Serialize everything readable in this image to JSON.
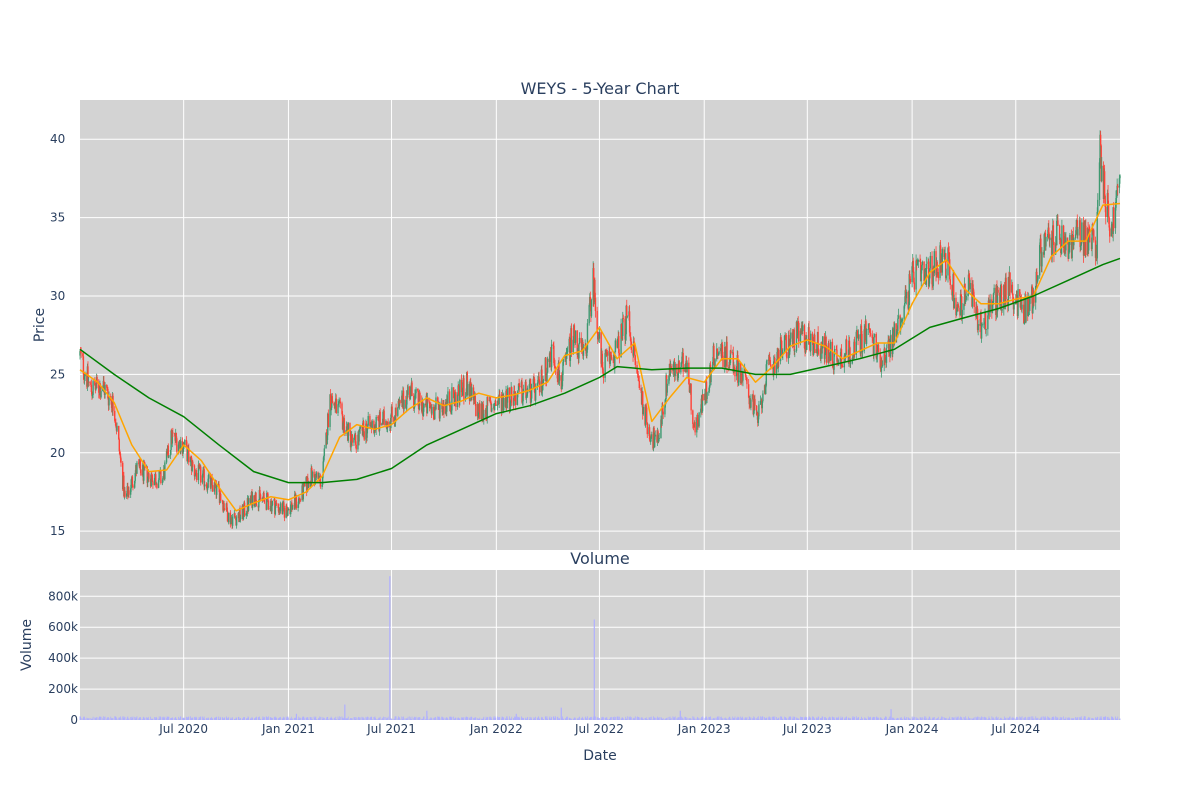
{
  "colors": {
    "plot_bg": "#d3d3d3",
    "grid": "#ffffff",
    "up": "#3d9970",
    "down": "#ff4136",
    "ma_short": "#ffa500",
    "ma_long": "#008000",
    "volume": "#b0b0ff",
    "text": "#2a3f5f"
  },
  "chart_data": [
    {
      "type": "candlestick",
      "title": "WEYS - 5-Year Chart",
      "ylabel": "Price",
      "ylim": [
        13.8,
        42.5
      ],
      "xlim": [
        "2020-01-01",
        "2024-12-31"
      ],
      "yticks": [
        15,
        20,
        25,
        30,
        35,
        40
      ],
      "grid": true,
      "price_path_points": [
        [
          "2020-01-01",
          26.2
        ],
        [
          "2020-01-20",
          24.0
        ],
        [
          "2020-02-10",
          24.3
        ],
        [
          "2020-03-01",
          23.0
        ],
        [
          "2020-03-20",
          17.0
        ],
        [
          "2020-04-10",
          19.0
        ],
        [
          "2020-05-01",
          18.5
        ],
        [
          "2020-05-25",
          18.3
        ],
        [
          "2020-06-10",
          21.0
        ],
        [
          "2020-07-01",
          20.5
        ],
        [
          "2020-07-20",
          18.8
        ],
        [
          "2020-08-10",
          18.2
        ],
        [
          "2020-09-01",
          17.5
        ],
        [
          "2020-09-20",
          15.8
        ],
        [
          "2020-10-10",
          16.0
        ],
        [
          "2020-11-01",
          17.2
        ],
        [
          "2020-12-01",
          16.8
        ],
        [
          "2020-12-25",
          16.3
        ],
        [
          "2021-01-20",
          17.0
        ],
        [
          "2021-02-10",
          18.5
        ],
        [
          "2021-03-01",
          18.2
        ],
        [
          "2021-03-15",
          23.5
        ],
        [
          "2021-04-01",
          22.5
        ],
        [
          "2021-04-25",
          20.5
        ],
        [
          "2021-05-15",
          21.5
        ],
        [
          "2021-06-15",
          22.0
        ],
        [
          "2021-07-10",
          22.5
        ],
        [
          "2021-08-01",
          24.0
        ],
        [
          "2021-08-20",
          23.0
        ],
        [
          "2021-09-15",
          22.8
        ],
        [
          "2021-10-20",
          23.5
        ],
        [
          "2021-11-10",
          24.3
        ],
        [
          "2021-12-01",
          22.5
        ],
        [
          "2022-01-15",
          23.5
        ],
        [
          "2022-02-15",
          23.8
        ],
        [
          "2022-03-15",
          24.0
        ],
        [
          "2022-04-10",
          26.5
        ],
        [
          "2022-04-25",
          24.5
        ],
        [
          "2022-05-15",
          27.5
        ],
        [
          "2022-06-05",
          26.0
        ],
        [
          "2022-06-20",
          31.0
        ],
        [
          "2022-07-05",
          25.5
        ],
        [
          "2022-08-01",
          26.5
        ],
        [
          "2022-08-20",
          28.8
        ],
        [
          "2022-09-05",
          25.0
        ],
        [
          "2022-09-25",
          21.5
        ],
        [
          "2022-10-10",
          20.5
        ],
        [
          "2022-11-01",
          25.5
        ],
        [
          "2022-11-15",
          25.0
        ],
        [
          "2022-12-01",
          26.0
        ],
        [
          "2022-12-15",
          21.5
        ],
        [
          "2023-01-05",
          24.0
        ],
        [
          "2023-01-20",
          26.5
        ],
        [
          "2023-02-15",
          26.2
        ],
        [
          "2023-03-15",
          24.5
        ],
        [
          "2023-04-05",
          22.0
        ],
        [
          "2023-04-20",
          25.0
        ],
        [
          "2023-05-15",
          26.5
        ],
        [
          "2023-06-15",
          27.5
        ],
        [
          "2023-07-15",
          27.0
        ],
        [
          "2023-08-20",
          26.0
        ],
        [
          "2023-09-15",
          26.5
        ],
        [
          "2023-10-15",
          27.8
        ],
        [
          "2023-11-05",
          26.0
        ],
        [
          "2023-11-20",
          26.5
        ],
        [
          "2023-12-10",
          28.5
        ],
        [
          "2024-01-05",
          31.5
        ],
        [
          "2024-01-25",
          31.0
        ],
        [
          "2024-02-20",
          32.5
        ],
        [
          "2024-03-05",
          32.0
        ],
        [
          "2024-03-20",
          29.0
        ],
        [
          "2024-04-10",
          30.5
        ],
        [
          "2024-05-01",
          28.0
        ],
        [
          "2024-05-20",
          29.5
        ],
        [
          "2024-06-20",
          30.5
        ],
        [
          "2024-07-15",
          29.0
        ],
        [
          "2024-08-01",
          30.0
        ],
        [
          "2024-08-15",
          33.0
        ],
        [
          "2024-09-10",
          33.8
        ],
        [
          "2024-10-01",
          33.0
        ],
        [
          "2024-10-20",
          34.0
        ],
        [
          "2024-11-01",
          33.5
        ],
        [
          "2024-11-20",
          33.5
        ],
        [
          "2024-11-25",
          39.5
        ],
        [
          "2024-12-05",
          36.5
        ],
        [
          "2024-12-15",
          34.0
        ],
        [
          "2024-12-31",
          37.5
        ]
      ],
      "moving_averages": [
        {
          "key": "ma_short",
          "points": [
            [
              "2020-01-01",
              25.3
            ],
            [
              "2020-02-01",
              24.5
            ],
            [
              "2020-03-01",
              23.2
            ],
            [
              "2020-04-01",
              20.5
            ],
            [
              "2020-05-01",
              18.8
            ],
            [
              "2020-06-01",
              18.9
            ],
            [
              "2020-07-01",
              20.5
            ],
            [
              "2020-08-01",
              19.5
            ],
            [
              "2020-09-01",
              17.8
            ],
            [
              "2020-10-01",
              16.3
            ],
            [
              "2020-11-01",
              16.8
            ],
            [
              "2020-12-01",
              17.2
            ],
            [
              "2021-01-01",
              17.0
            ],
            [
              "2021-02-01",
              17.5
            ],
            [
              "2021-03-01",
              18.5
            ],
            [
              "2021-04-01",
              21.0
            ],
            [
              "2021-05-01",
              21.8
            ],
            [
              "2021-06-01",
              21.5
            ],
            [
              "2021-07-01",
              21.8
            ],
            [
              "2021-08-01",
              22.8
            ],
            [
              "2021-09-01",
              23.5
            ],
            [
              "2021-10-01",
              23.0
            ],
            [
              "2021-11-01",
              23.3
            ],
            [
              "2021-12-01",
              23.8
            ],
            [
              "2022-01-01",
              23.5
            ],
            [
              "2022-02-01",
              23.7
            ],
            [
              "2022-03-01",
              24.0
            ],
            [
              "2022-04-01",
              24.5
            ],
            [
              "2022-05-01",
              26.2
            ],
            [
              "2022-06-01",
              26.5
            ],
            [
              "2022-07-01",
              28.0
            ],
            [
              "2022-08-01",
              26.0
            ],
            [
              "2022-09-01",
              27.0
            ],
            [
              "2022-10-01",
              22.0
            ],
            [
              "2022-11-01",
              23.5
            ],
            [
              "2022-12-01",
              24.8
            ],
            [
              "2023-01-01",
              24.5
            ],
            [
              "2023-02-01",
              26.0
            ],
            [
              "2023-03-01",
              26.0
            ],
            [
              "2023-04-01",
              24.5
            ],
            [
              "2023-05-01",
              25.5
            ],
            [
              "2023-06-01",
              26.8
            ],
            [
              "2023-07-01",
              27.2
            ],
            [
              "2023-08-01",
              26.8
            ],
            [
              "2023-09-01",
              26.0
            ],
            [
              "2023-10-01",
              26.5
            ],
            [
              "2023-11-01",
              27.0
            ],
            [
              "2023-12-01",
              27.0
            ],
            [
              "2024-01-01",
              29.5
            ],
            [
              "2024-02-01",
              31.5
            ],
            [
              "2024-03-01",
              32.3
            ],
            [
              "2024-04-01",
              30.5
            ],
            [
              "2024-05-01",
              29.5
            ],
            [
              "2024-06-01",
              29.5
            ],
            [
              "2024-07-01",
              29.8
            ],
            [
              "2024-08-01",
              30.0
            ],
            [
              "2024-09-01",
              32.5
            ],
            [
              "2024-10-01",
              33.5
            ],
            [
              "2024-11-01",
              33.5
            ],
            [
              "2024-12-01",
              35.8
            ],
            [
              "2024-12-31",
              35.9
            ]
          ]
        },
        {
          "key": "ma_long",
          "points": [
            [
              "2020-01-01",
              26.6
            ],
            [
              "2020-03-01",
              25.0
            ],
            [
              "2020-05-01",
              23.5
            ],
            [
              "2020-07-01",
              22.3
            ],
            [
              "2020-09-01",
              20.5
            ],
            [
              "2020-11-01",
              18.8
            ],
            [
              "2021-01-01",
              18.1
            ],
            [
              "2021-03-01",
              18.1
            ],
            [
              "2021-05-01",
              18.3
            ],
            [
              "2021-07-01",
              19.0
            ],
            [
              "2021-09-01",
              20.5
            ],
            [
              "2021-11-01",
              21.5
            ],
            [
              "2022-01-01",
              22.5
            ],
            [
              "2022-03-01",
              23.0
            ],
            [
              "2022-05-01",
              23.8
            ],
            [
              "2022-07-01",
              24.8
            ],
            [
              "2022-08-01",
              25.5
            ],
            [
              "2022-10-01",
              25.3
            ],
            [
              "2022-12-01",
              25.4
            ],
            [
              "2023-02-01",
              25.4
            ],
            [
              "2023-04-01",
              25.0
            ],
            [
              "2023-06-01",
              25.0
            ],
            [
              "2023-08-01",
              25.5
            ],
            [
              "2023-10-01",
              26.0
            ],
            [
              "2023-12-01",
              26.6
            ],
            [
              "2024-02-01",
              28.0
            ],
            [
              "2024-04-01",
              28.6
            ],
            [
              "2024-06-01",
              29.2
            ],
            [
              "2024-08-01",
              30.0
            ],
            [
              "2024-10-01",
              31.0
            ],
            [
              "2024-12-01",
              32.0
            ],
            [
              "2024-12-31",
              32.4
            ]
          ]
        }
      ]
    },
    {
      "type": "bar",
      "title": "Volume",
      "ylabel": "Volume",
      "xlabel": "Date",
      "ylim": [
        0,
        970000
      ],
      "yticks": [
        0,
        200000,
        400000,
        600000,
        800000
      ],
      "ytick_labels": [
        "0",
        "200k",
        "400k",
        "600k",
        "800k"
      ],
      "xticks": [
        "2020-07-01",
        "2021-01-01",
        "2021-07-01",
        "2022-01-01",
        "2022-07-01",
        "2023-01-01",
        "2023-07-01",
        "2024-01-01",
        "2024-07-01"
      ],
      "xtick_labels": [
        "Jul 2020",
        "Jan 2021",
        "Jul 2021",
        "Jan 2022",
        "Jul 2022",
        "Jan 2023",
        "Jul 2023",
        "Jan 2024",
        "Jul 2024"
      ],
      "baseline": 15000,
      "spikes": [
        [
          "2021-04-10",
          100000
        ],
        [
          "2021-06-28",
          930000
        ],
        [
          "2021-09-01",
          60000
        ],
        [
          "2022-04-25",
          80000
        ],
        [
          "2022-06-22",
          650000
        ],
        [
          "2022-11-20",
          60000
        ],
        [
          "2023-11-25",
          70000
        ],
        [
          "2022-02-05",
          40000
        ],
        [
          "2021-01-15",
          40000
        ]
      ]
    }
  ]
}
